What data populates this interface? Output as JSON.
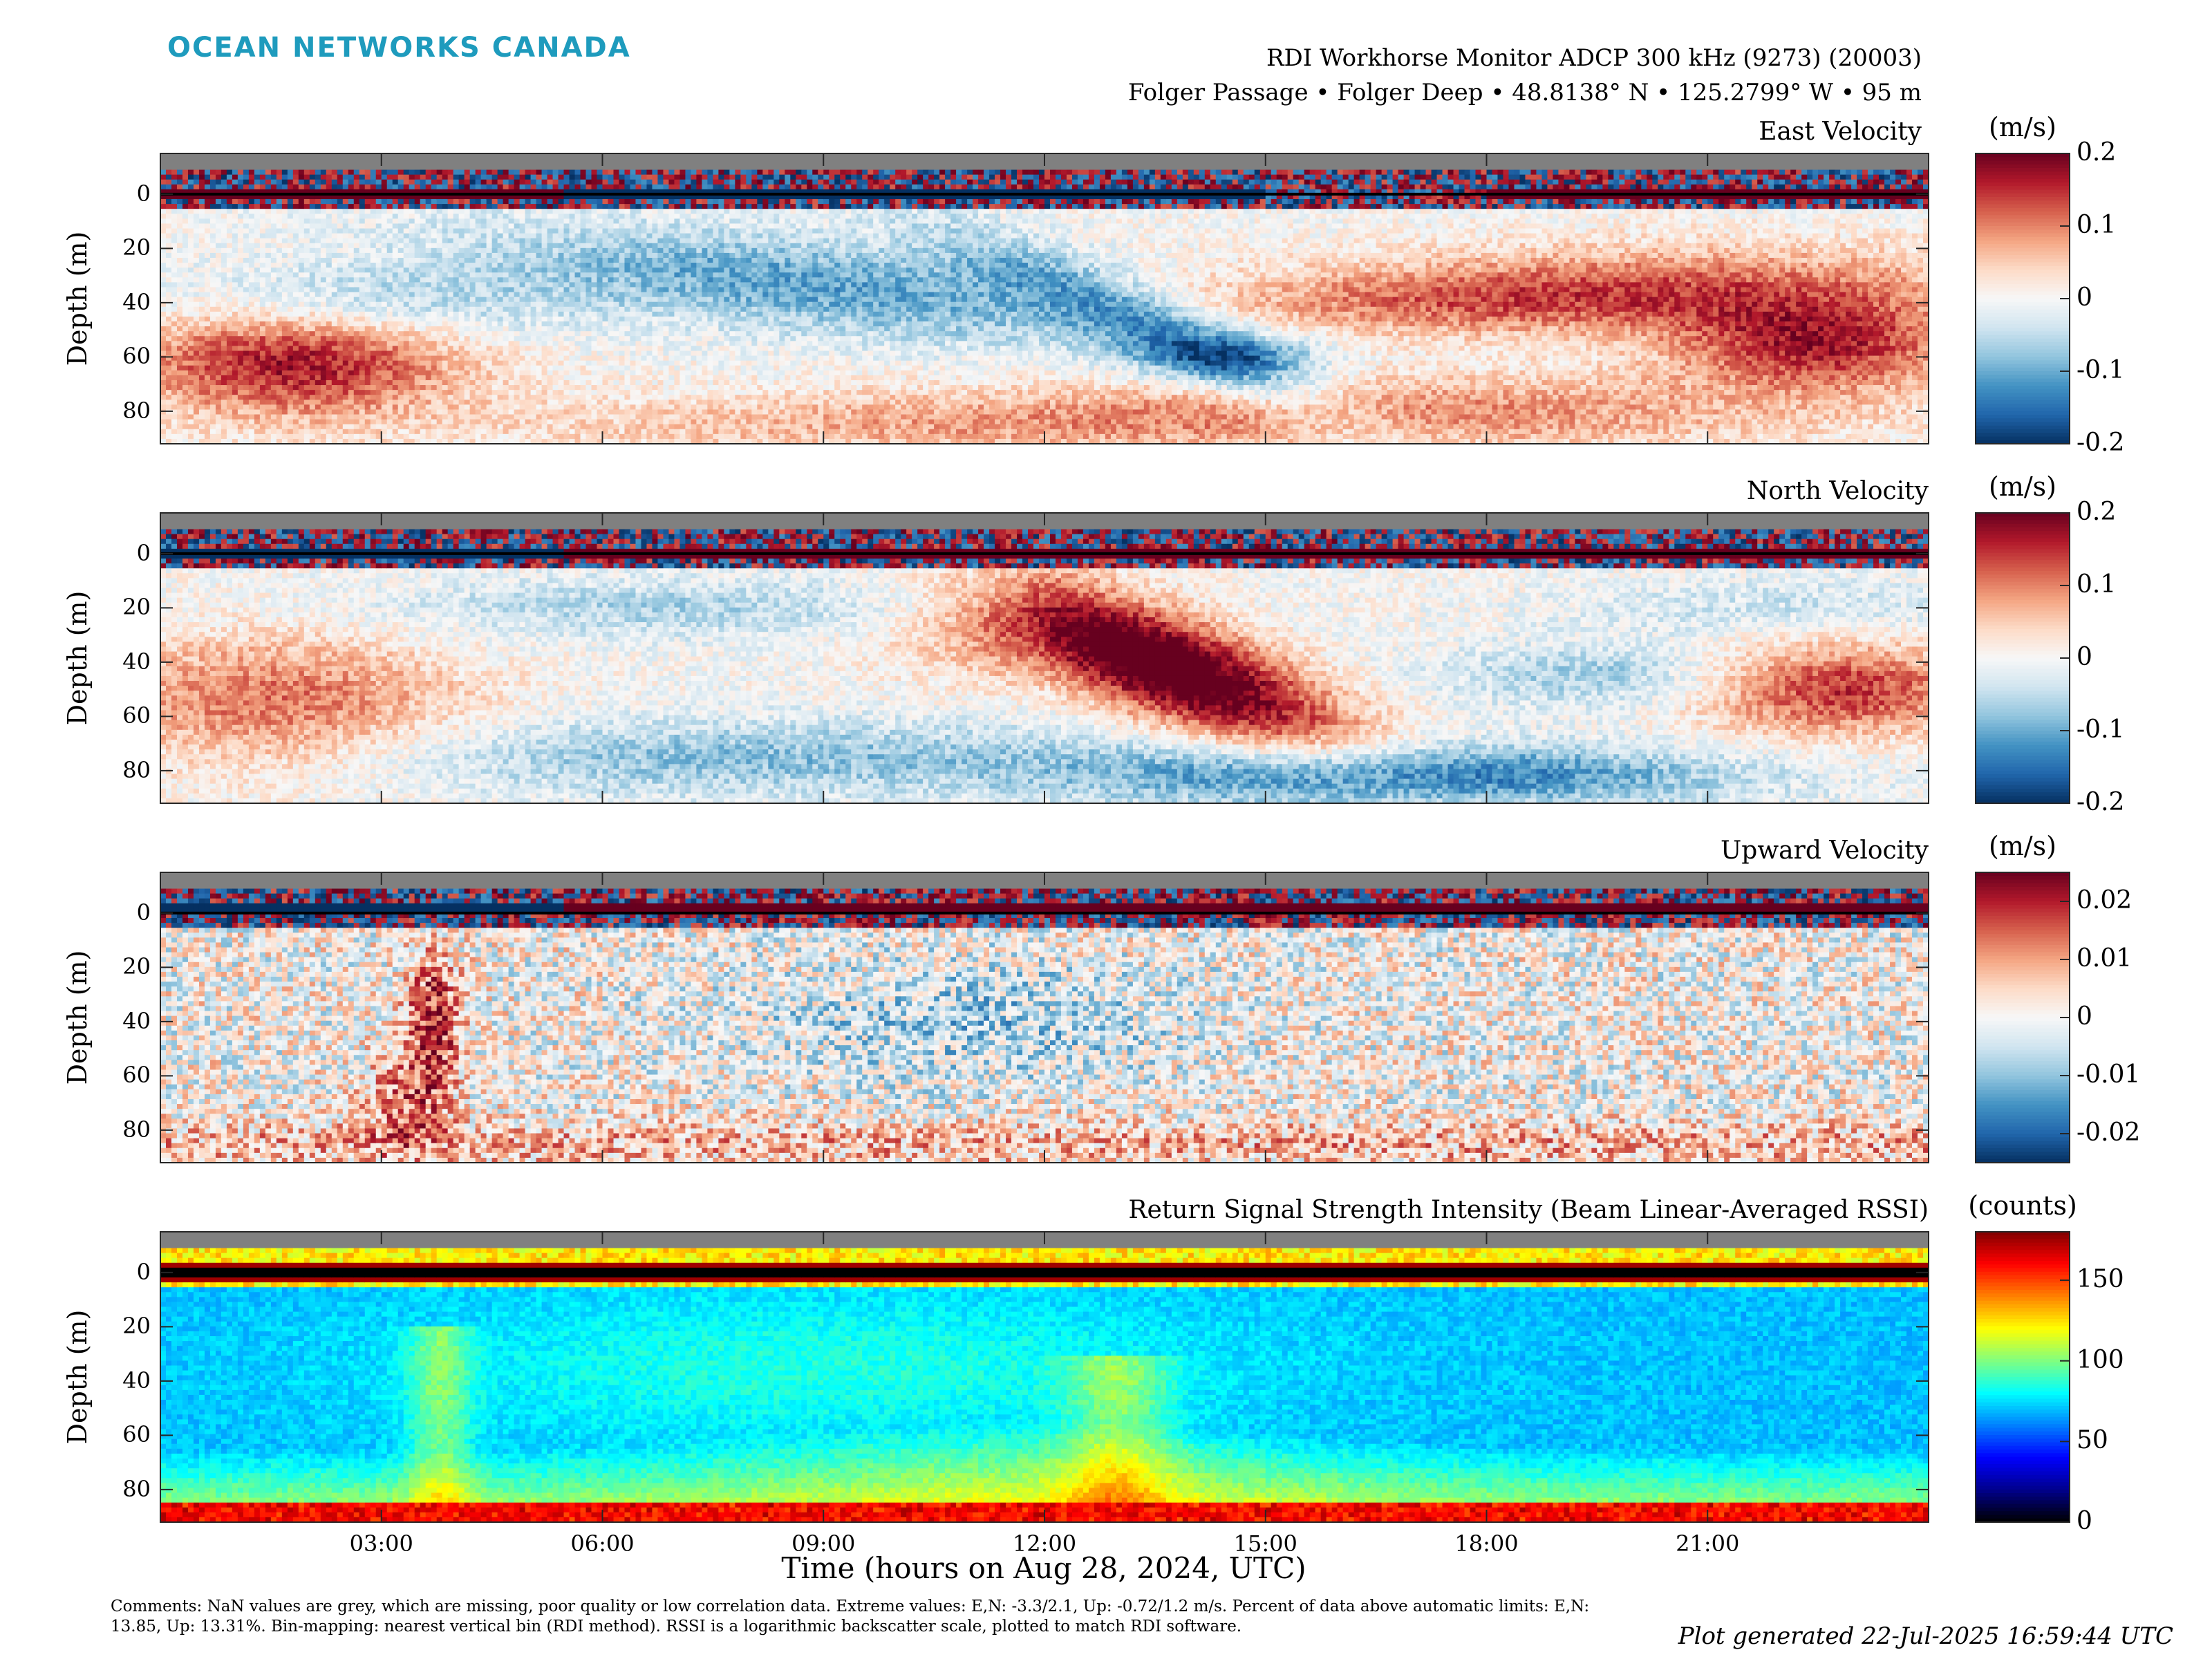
{
  "header": {
    "brand": "OCEAN NETWORKS CANADA",
    "brand_color": "#1e9bbd",
    "instrument": "RDI Workhorse Monitor ADCP 300 kHz (9273) (20003)",
    "location": "Folger Passage • Folger Deep • 48.8138° N • 125.2799° W • 95 m"
  },
  "chart_data": [
    {
      "type": "heatmap",
      "title": "East Velocity",
      "ylabel": "Depth (m)",
      "unit": "(m/s)",
      "colormap": "red-blue diverging",
      "clim": [
        -0.2,
        0.2
      ],
      "colorbar_ticks": [
        "0.2",
        "0.1",
        "0",
        "-0.1",
        "-0.2"
      ],
      "y_ticks": [
        "0",
        "20",
        "40",
        "60",
        "80"
      ],
      "ylim": [
        92,
        -15
      ],
      "x_ticks": [
        "03:00",
        "06:00",
        "09:00",
        "12:00",
        "15:00",
        "18:00",
        "21:00"
      ],
      "xlim_hours": [
        0,
        24
      ]
    },
    {
      "type": "heatmap",
      "title": "North Velocity",
      "ylabel": "Depth (m)",
      "unit": "(m/s)",
      "colormap": "red-blue diverging",
      "clim": [
        -0.2,
        0.2
      ],
      "colorbar_ticks": [
        "0.2",
        "0.1",
        "0",
        "-0.1",
        "-0.2"
      ],
      "y_ticks": [
        "0",
        "20",
        "40",
        "60",
        "80"
      ],
      "ylim": [
        92,
        -15
      ],
      "x_ticks": [
        "03:00",
        "06:00",
        "09:00",
        "12:00",
        "15:00",
        "18:00",
        "21:00"
      ],
      "xlim_hours": [
        0,
        24
      ]
    },
    {
      "type": "heatmap",
      "title": "Upward Velocity",
      "ylabel": "Depth (m)",
      "unit": "(m/s)",
      "colormap": "red-blue diverging",
      "clim": [
        -0.025,
        0.025
      ],
      "colorbar_ticks": [
        "0.02",
        "0.01",
        "0",
        "-0.01",
        "-0.02"
      ],
      "y_ticks": [
        "0",
        "20",
        "40",
        "60",
        "80"
      ],
      "ylim": [
        92,
        -15
      ],
      "x_ticks": [
        "03:00",
        "06:00",
        "09:00",
        "12:00",
        "15:00",
        "18:00",
        "21:00"
      ],
      "xlim_hours": [
        0,
        24
      ]
    },
    {
      "type": "heatmap",
      "title": "Return Signal Strength Intensity (Beam Linear-Averaged RSSI)",
      "ylabel": "Depth (m)",
      "unit": "(counts)",
      "colormap": "jet",
      "clim": [
        0,
        180
      ],
      "colorbar_ticks": [
        "150",
        "100",
        "50",
        "0"
      ],
      "y_ticks": [
        "0",
        "20",
        "40",
        "60",
        "80"
      ],
      "ylim": [
        92,
        -15
      ],
      "x_ticks": [
        "03:00",
        "06:00",
        "09:00",
        "12:00",
        "15:00",
        "18:00",
        "21:00"
      ],
      "xlim_hours": [
        0,
        24
      ]
    }
  ],
  "xlabel": "Time (hours on Aug 28, 2024, UTC)",
  "comments": "Comments: NaN values are grey, which are missing, poor quality or low correlation data. Extreme values: E,N: -3.3/2.1, Up: -0.72/1.2 m/s. Percent of data above automatic limits: E,N: 13.85, Up: 13.31%. Bin-mapping: nearest vertical bin (RDI method). RSSI is a logarithmic backscatter scale, plotted to match RDI software.",
  "generated": "Plot generated 22-Jul-2025 16:59:44 UTC"
}
